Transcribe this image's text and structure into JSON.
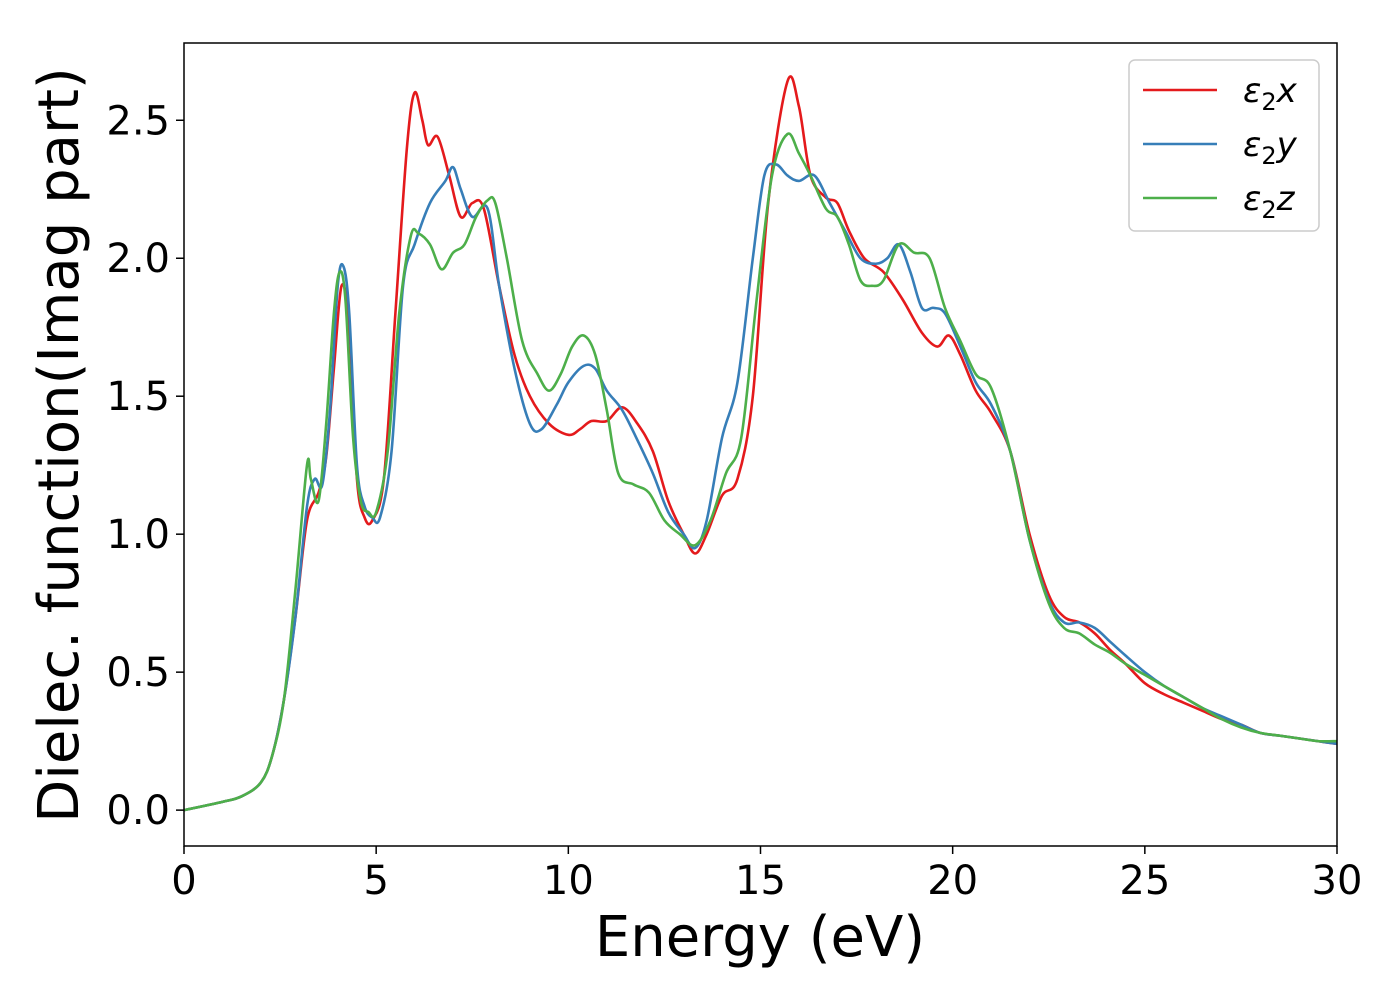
{
  "chart_data": {
    "type": "line",
    "xlabel": "Energy (eV)",
    "ylabel": "Dielec. function(Imag part)",
    "xlim": [
      0,
      30
    ],
    "ylim": [
      -0.13,
      2.78
    ],
    "xticks": [
      0,
      5,
      10,
      15,
      20,
      25,
      30
    ],
    "xtick_labels": [
      "0",
      "5",
      "10",
      "15",
      "20",
      "25",
      "30"
    ],
    "yticks": [
      0.0,
      0.5,
      1.0,
      1.5,
      2.0,
      2.5
    ],
    "ytick_labels": [
      "0.0",
      "0.5",
      "1.0",
      "1.5",
      "2.0",
      "2.5"
    ],
    "grid": false,
    "legend_position": "top-right",
    "series": [
      {
        "name": "ε₂x",
        "base": "ε",
        "sub": "2",
        "suffix": "x",
        "color": "#e41a1c",
        "x": [
          0,
          1,
          1.5,
          2,
          2.3,
          2.6,
          2.9,
          3.2,
          3.5,
          3.7,
          3.9,
          4.1,
          4.3,
          4.5,
          4.7,
          4.9,
          5.2,
          5.5,
          5.8,
          6.0,
          6.2,
          6.35,
          6.6,
          6.9,
          7.2,
          7.5,
          7.8,
          8.2,
          8.6,
          9.0,
          9.5,
          10.0,
          10.3,
          10.6,
          11.0,
          11.4,
          11.8,
          12.2,
          12.6,
          13.0,
          13.3,
          13.6,
          14.0,
          14.4,
          14.8,
          15.2,
          15.7,
          16.0,
          16.3,
          16.7,
          17.0,
          17.3,
          17.7,
          18.2,
          18.7,
          19.2,
          19.6,
          19.9,
          20.2,
          20.6,
          21.0,
          21.5,
          22.0,
          22.5,
          22.9,
          23.3,
          23.7,
          24.1,
          24.5,
          25.0,
          25.5,
          26.0,
          26.5,
          27.0,
          27.5,
          28.0,
          28.5,
          29.0,
          29.5,
          30.0
        ],
        "values": [
          0,
          0.03,
          0.05,
          0.1,
          0.2,
          0.4,
          0.7,
          1.05,
          1.15,
          1.28,
          1.6,
          1.9,
          1.75,
          1.2,
          1.06,
          1.05,
          1.2,
          1.8,
          2.4,
          2.6,
          2.5,
          2.41,
          2.44,
          2.3,
          2.15,
          2.2,
          2.18,
          1.9,
          1.65,
          1.5,
          1.4,
          1.36,
          1.38,
          1.41,
          1.41,
          1.46,
          1.4,
          1.3,
          1.12,
          1.0,
          0.93,
          1.0,
          1.14,
          1.2,
          1.5,
          2.2,
          2.64,
          2.55,
          2.3,
          2.22,
          2.2,
          2.1,
          2.0,
          1.95,
          1.85,
          1.73,
          1.68,
          1.72,
          1.65,
          1.52,
          1.44,
          1.3,
          1.0,
          0.78,
          0.7,
          0.68,
          0.64,
          0.58,
          0.53,
          0.46,
          0.42,
          0.39,
          0.36,
          0.33,
          0.31,
          0.28,
          0.27,
          0.26,
          0.25,
          0.24
        ]
      },
      {
        "name": "ε₂y",
        "base": "ε",
        "sub": "2",
        "suffix": "y",
        "color": "#377eb8",
        "x": [
          0,
          1,
          1.5,
          2,
          2.3,
          2.6,
          2.9,
          3.2,
          3.4,
          3.6,
          3.8,
          4.0,
          4.15,
          4.3,
          4.5,
          4.7,
          4.9,
          5.1,
          5.4,
          5.7,
          6.0,
          6.4,
          6.8,
          7.0,
          7.2,
          7.5,
          7.9,
          8.2,
          8.6,
          9.0,
          9.3,
          9.7,
          10.0,
          10.4,
          10.7,
          11.0,
          11.4,
          11.8,
          12.2,
          12.6,
          13.0,
          13.3,
          13.6,
          14.0,
          14.4,
          14.8,
          15.1,
          15.4,
          15.7,
          16.0,
          16.4,
          16.8,
          17.2,
          17.6,
          18.0,
          18.3,
          18.6,
          18.9,
          19.2,
          19.5,
          19.8,
          20.2,
          20.6,
          21.0,
          21.5,
          22.0,
          22.5,
          22.9,
          23.3,
          23.7,
          24.1,
          24.5,
          25.0,
          25.5,
          26.0,
          26.5,
          27.0,
          27.5,
          28.0,
          28.5,
          29.0,
          29.5,
          30.0
        ],
        "values": [
          0,
          0.03,
          0.05,
          0.1,
          0.2,
          0.4,
          0.7,
          1.1,
          1.2,
          1.18,
          1.45,
          1.9,
          1.97,
          1.8,
          1.25,
          1.1,
          1.06,
          1.06,
          1.3,
          1.9,
          2.05,
          2.2,
          2.28,
          2.33,
          2.25,
          2.15,
          2.18,
          1.9,
          1.6,
          1.4,
          1.38,
          1.47,
          1.55,
          1.61,
          1.6,
          1.52,
          1.45,
          1.34,
          1.22,
          1.08,
          1.0,
          0.95,
          1.05,
          1.35,
          1.55,
          2.0,
          2.3,
          2.34,
          2.3,
          2.28,
          2.3,
          2.2,
          2.1,
          2.0,
          1.98,
          2.0,
          2.05,
          1.95,
          1.82,
          1.82,
          1.8,
          1.68,
          1.55,
          1.47,
          1.3,
          0.98,
          0.76,
          0.68,
          0.68,
          0.66,
          0.61,
          0.56,
          0.5,
          0.45,
          0.41,
          0.37,
          0.34,
          0.31,
          0.28,
          0.27,
          0.26,
          0.25,
          0.24
        ]
      },
      {
        "name": "ε₂z",
        "base": "ε",
        "sub": "2",
        "suffix": "z",
        "color": "#4daf4a",
        "x": [
          0,
          1,
          1.5,
          2,
          2.3,
          2.6,
          2.9,
          3.2,
          3.3,
          3.5,
          3.7,
          3.9,
          4.05,
          4.2,
          4.4,
          4.6,
          4.8,
          5.0,
          5.3,
          5.6,
          5.9,
          6.1,
          6.4,
          6.7,
          7.0,
          7.3,
          7.6,
          7.9,
          8.1,
          8.4,
          8.8,
          9.2,
          9.5,
          9.8,
          10.1,
          10.4,
          10.7,
          11.0,
          11.3,
          11.7,
          12.1,
          12.5,
          12.9,
          13.3,
          13.7,
          14.1,
          14.5,
          14.9,
          15.3,
          15.7,
          16.0,
          16.3,
          16.7,
          17.0,
          17.3,
          17.6,
          17.9,
          18.2,
          18.6,
          19.0,
          19.4,
          19.8,
          20.2,
          20.6,
          21.0,
          21.5,
          22.0,
          22.5,
          22.9,
          23.3,
          23.7,
          24.1,
          24.5,
          25.0,
          25.5,
          26.0,
          26.5,
          27.0,
          27.5,
          28.0,
          28.5,
          29.0,
          29.5,
          30.0
        ],
        "values": [
          0,
          0.03,
          0.05,
          0.1,
          0.2,
          0.4,
          0.8,
          1.25,
          1.2,
          1.12,
          1.4,
          1.8,
          1.95,
          1.85,
          1.35,
          1.12,
          1.08,
          1.08,
          1.3,
          1.8,
          2.08,
          2.09,
          2.05,
          1.96,
          2.02,
          2.05,
          2.15,
          2.21,
          2.2,
          2.0,
          1.7,
          1.58,
          1.52,
          1.58,
          1.68,
          1.72,
          1.65,
          1.45,
          1.22,
          1.18,
          1.15,
          1.05,
          1.0,
          0.96,
          1.05,
          1.22,
          1.35,
          1.85,
          2.3,
          2.45,
          2.38,
          2.3,
          2.18,
          2.15,
          2.05,
          1.92,
          1.9,
          1.92,
          2.05,
          2.02,
          2.0,
          1.82,
          1.7,
          1.58,
          1.53,
          1.3,
          0.98,
          0.75,
          0.66,
          0.64,
          0.6,
          0.57,
          0.53,
          0.49,
          0.45,
          0.41,
          0.37,
          0.33,
          0.3,
          0.28,
          0.27,
          0.26,
          0.25,
          0.25
        ]
      }
    ]
  }
}
